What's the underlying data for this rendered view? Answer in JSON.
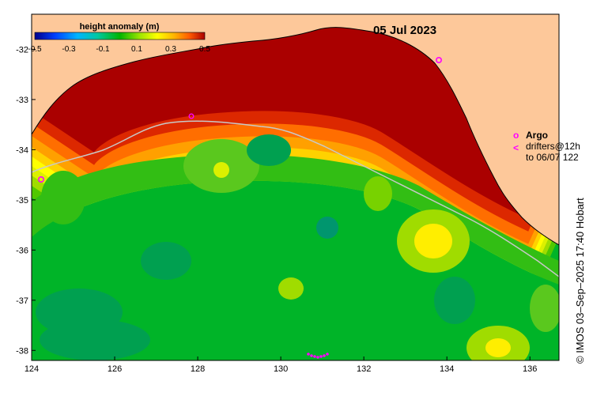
{
  "map": {
    "date": "05 Jul 2023",
    "colorbar": {
      "title": "height anomaly (m)",
      "ticks": [
        "-0.5",
        "-0.3",
        "-0.1",
        "0.1",
        "0.3",
        "0.5"
      ],
      "range": [
        -0.5,
        0.5
      ],
      "colors": [
        "#00008b",
        "#0050ff",
        "#00c8ff",
        "#00c878",
        "#00b400",
        "#78dc00",
        "#ffff00",
        "#ffaa00",
        "#ff6400",
        "#b40000"
      ]
    },
    "x_ticks": [
      "124",
      "126",
      "128",
      "130",
      "132",
      "134",
      "136"
    ],
    "y_ticks": [
      "-32",
      "-33",
      "-34",
      "-35",
      "-36",
      "-37",
      "-38"
    ],
    "extent": {
      "lon": [
        124,
        136.7
      ],
      "lat": [
        -38.2,
        -31.3
      ]
    },
    "legend": {
      "argo_symbol": "o",
      "argo_label": "Argo",
      "drifter_symbol": "<",
      "drifter_label": "drifters@12h",
      "drifter_range": "to 06/07 122"
    },
    "credit": "© IMOS 03–Sep–2025 17:40 Hobart",
    "colors": {
      "land": "#fdc89a",
      "ocean": "#00b428",
      "argo": "#ff00ff",
      "coastline": "#000000"
    }
  }
}
